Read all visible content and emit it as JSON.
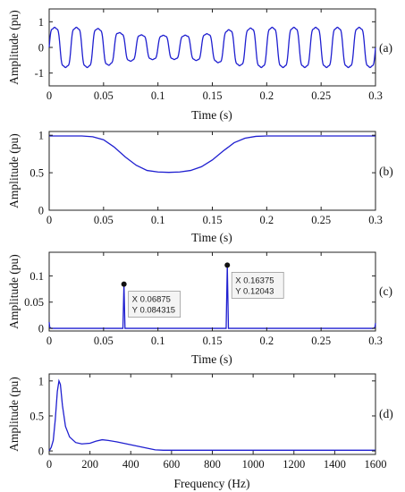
{
  "chart_data": [
    {
      "type": "line",
      "panel_label": "(a)",
      "xlabel": "Time (s)",
      "ylabel": "Amplitude (pu)",
      "xlim": [
        0,
        0.3
      ],
      "ylim": [
        -1.5,
        1.5
      ],
      "xticks": [
        0,
        0.05,
        0.1,
        0.15,
        0.2,
        0.25,
        0.3
      ],
      "xtick_labels": [
        "0",
        "0.05",
        "0.1",
        "0.15",
        "0.2",
        "0.25",
        "0.3"
      ],
      "yticks": [
        -1,
        0,
        1
      ],
      "ytick_labels": [
        "-1",
        "0",
        "1"
      ],
      "series": [
        {
          "signal": "50 Hz sinusoid with voltage sag, amplitude 1 pu outside the sag and about 0.6 pu near t = 0.1 s",
          "frequency_hz": 50,
          "sample_step": 0.0005,
          "envelope": [
            {
              "t": 0,
              "a": 1.0
            },
            {
              "t": 0.035,
              "a": 1.0
            },
            {
              "t": 0.05,
              "a": 0.92
            },
            {
              "t": 0.07,
              "a": 0.7
            },
            {
              "t": 0.09,
              "a": 0.61
            },
            {
              "t": 0.12,
              "a": 0.6
            },
            {
              "t": 0.145,
              "a": 0.68
            },
            {
              "t": 0.17,
              "a": 0.9
            },
            {
              "t": 0.195,
              "a": 1.0
            },
            {
              "t": 0.3,
              "a": 1.0
            }
          ]
        }
      ]
    },
    {
      "type": "line",
      "panel_label": "(b)",
      "xlabel": "Time (s)",
      "ylabel": "Amplitude (pu)",
      "xlim": [
        0,
        0.3
      ],
      "ylim": [
        0,
        1.05
      ],
      "xticks": [
        0,
        0.05,
        0.1,
        0.15,
        0.2,
        0.25,
        0.3
      ],
      "xtick_labels": [
        "0",
        "0.05",
        "0.1",
        "0.15",
        "0.2",
        "0.25",
        "0.3"
      ],
      "yticks": [
        0,
        0.5,
        1
      ],
      "ytick_labels": [
        "0",
        "0.5",
        "1"
      ],
      "series": [
        {
          "x": [
            0,
            0.03,
            0.04,
            0.05,
            0.06,
            0.07,
            0.08,
            0.09,
            0.1,
            0.11,
            0.12,
            0.13,
            0.14,
            0.15,
            0.16,
            0.17,
            0.18,
            0.19,
            0.2,
            0.21,
            0.3
          ],
          "y": [
            0.99,
            0.99,
            0.98,
            0.94,
            0.84,
            0.71,
            0.6,
            0.53,
            0.51,
            0.505,
            0.51,
            0.53,
            0.58,
            0.67,
            0.79,
            0.9,
            0.96,
            0.985,
            0.99,
            0.99,
            0.99
          ]
        }
      ]
    },
    {
      "type": "line",
      "panel_label": "(c)",
      "xlabel": "Time (s)",
      "ylabel": "Amplitude (pu)",
      "xlim": [
        0,
        0.3
      ],
      "ylim": [
        -0.005,
        0.145
      ],
      "xticks": [
        0,
        0.05,
        0.1,
        0.15,
        0.2,
        0.25,
        0.3
      ],
      "xtick_labels": [
        "0",
        "0.05",
        "0.1",
        "0.15",
        "0.2",
        "0.25",
        "0.3"
      ],
      "yticks": [
        0,
        0.05,
        0.1
      ],
      "ytick_labels": [
        "0",
        "0.05",
        "0.1"
      ],
      "series": [
        {
          "x": [
            0,
            0.0005,
            0.002,
            0.0678,
            0.06875,
            0.0697,
            0.1627,
            0.16375,
            0.1648,
            0.298,
            0.2995,
            0.3
          ],
          "y": [
            0.012,
            0.002,
            0.0,
            0.0,
            0.084315,
            0.0,
            0.0,
            0.12043,
            0.0,
            0.0,
            0.002,
            0.01
          ]
        }
      ],
      "datatips": [
        {
          "x": 0.06875,
          "y": 0.084315,
          "x_text": "X 0.06875",
          "y_text": "Y 0.084315"
        },
        {
          "x": 0.16375,
          "y": 0.12043,
          "x_text": "X 0.16375",
          "y_text": "Y 0.12043"
        }
      ]
    },
    {
      "type": "line",
      "panel_label": "(d)",
      "xlabel": "Frequency (Hz)",
      "ylabel": "Amplitude (pu)",
      "xlim": [
        0,
        1600
      ],
      "ylim": [
        -0.05,
        1.1
      ],
      "xticks": [
        0,
        200,
        400,
        600,
        800,
        1000,
        1200,
        1400,
        1600
      ],
      "xtick_labels": [
        "0",
        "200",
        "400",
        "600",
        "800",
        "1000",
        "1200",
        "1400",
        "1600"
      ],
      "yticks": [
        0,
        0.5,
        1
      ],
      "ytick_labels": [
        "0",
        "0.5",
        "1"
      ],
      "series": [
        {
          "x": [
            0,
            10,
            20,
            30,
            40,
            48,
            55,
            65,
            80,
            100,
            130,
            160,
            200,
            230,
            260,
            290,
            330,
            380,
            430,
            480,
            520,
            560,
            600,
            800,
            1000,
            1200,
            1400,
            1600
          ],
          "y": [
            0.0,
            0.05,
            0.15,
            0.45,
            0.85,
            1.0,
            0.95,
            0.65,
            0.35,
            0.2,
            0.12,
            0.1,
            0.11,
            0.14,
            0.16,
            0.15,
            0.13,
            0.1,
            0.07,
            0.04,
            0.015,
            0.01,
            0.01,
            0.01,
            0.01,
            0.01,
            0.01,
            0.01
          ]
        }
      ]
    }
  ],
  "colors": {
    "line": "#1f1fd0",
    "axis": "#222222",
    "datatip_border": "#9a9a9a",
    "datatip_bg": "#f4f4f4",
    "marker": "#111111"
  }
}
